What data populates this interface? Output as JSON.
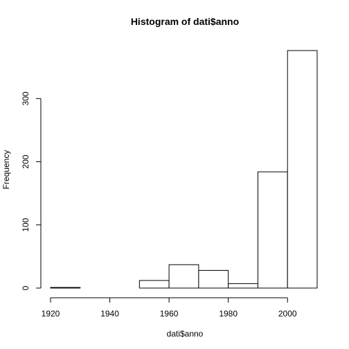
{
  "chart_data": {
    "type": "bar",
    "title": "Histogram of dati$anno",
    "xlabel": "dati$anno",
    "ylabel": "Frequency",
    "bins": [
      {
        "start": 1920,
        "end": 1930,
        "count": 1
      },
      {
        "start": 1930,
        "end": 1940,
        "count": 0
      },
      {
        "start": 1940,
        "end": 1950,
        "count": 0
      },
      {
        "start": 1950,
        "end": 1960,
        "count": 12
      },
      {
        "start": 1960,
        "end": 1970,
        "count": 37
      },
      {
        "start": 1970,
        "end": 1980,
        "count": 28
      },
      {
        "start": 1980,
        "end": 1990,
        "count": 7
      },
      {
        "start": 1990,
        "end": 2000,
        "count": 184
      },
      {
        "start": 2000,
        "end": 2010,
        "count": 376
      }
    ],
    "xticks": [
      1920,
      1940,
      1960,
      1980,
      2000
    ],
    "yticks": [
      0,
      100,
      200,
      300
    ],
    "xlim": [
      1920,
      2010
    ],
    "ylim": [
      0,
      376
    ],
    "grid": false,
    "legend": "none"
  }
}
